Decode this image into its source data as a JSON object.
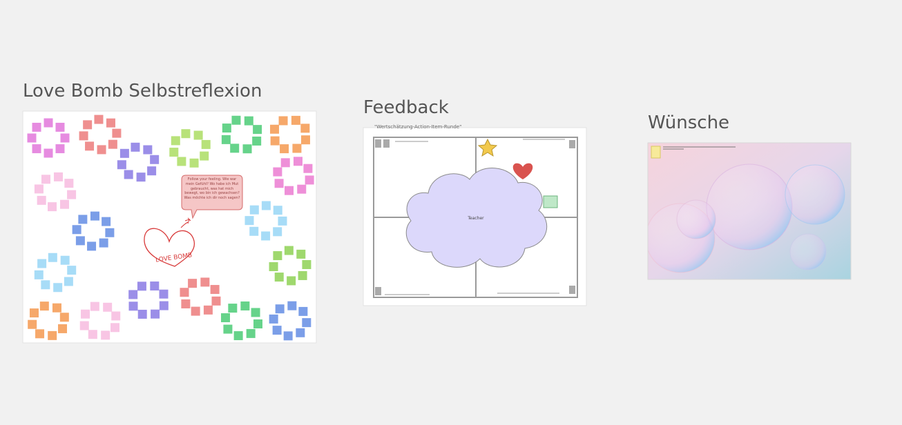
{
  "frames": [
    {
      "title": "Love Bomb Selbstreflexion",
      "bubble_text": "Follow your feeling. Wie war mein Gefühl? Wo habe ich Mut gebraucht, was hat mich bewegt, wo bin ich gewachsen? Was möchte ich dir noch sagen?",
      "drawing_label": "LOVE BOMB"
    },
    {
      "title": "Feedback",
      "subtitle": "\"Wertschätzung-Action-Item-Runde\"",
      "center_label": "Teacher"
    },
    {
      "title": "Wünsche"
    }
  ]
}
